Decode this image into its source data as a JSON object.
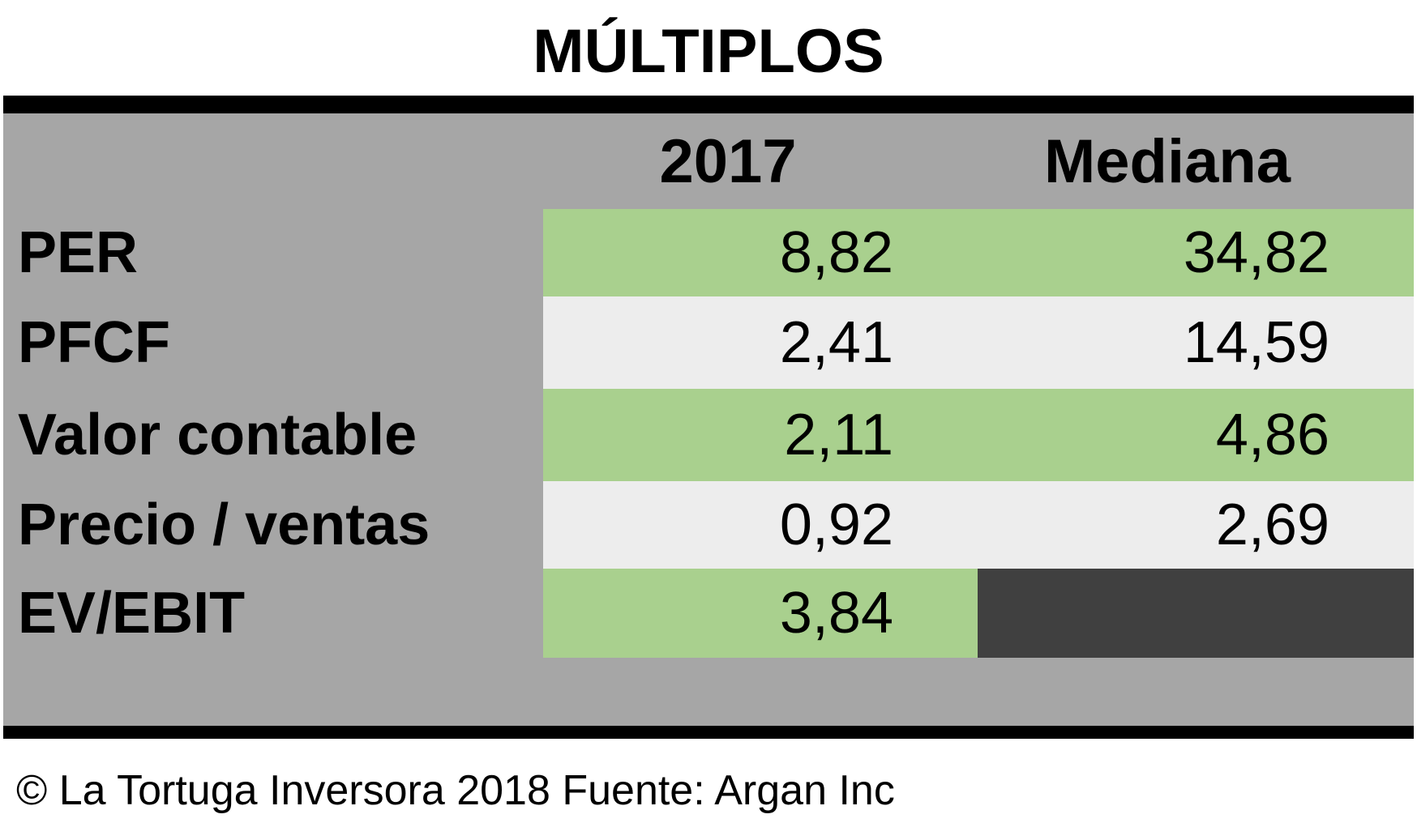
{
  "chart_data": {
    "type": "table",
    "title": "MÚLTIPLOS",
    "columns": [
      "2017",
      "Mediana"
    ],
    "rows": [
      {
        "label": "PER",
        "values": [
          "8,82",
          "34,82"
        ]
      },
      {
        "label": "PFCF",
        "values": [
          "2,41",
          "14,59"
        ]
      },
      {
        "label": "Valor contable",
        "values": [
          "2,11",
          "4,86"
        ]
      },
      {
        "label": "Precio / ventas",
        "values": [
          "0,92",
          "2,69"
        ]
      },
      {
        "label": "EV/EBIT",
        "values": [
          "3,84",
          ""
        ]
      }
    ],
    "footer": "© La Tortuga Inversora 2018 Fuente: Argan Inc",
    "colors": {
      "header_bg": "#a6a6a6",
      "row_green": "#a9d08e",
      "row_light": "#ededed",
      "empty_cell": "#404040",
      "rule": "#000000"
    }
  }
}
